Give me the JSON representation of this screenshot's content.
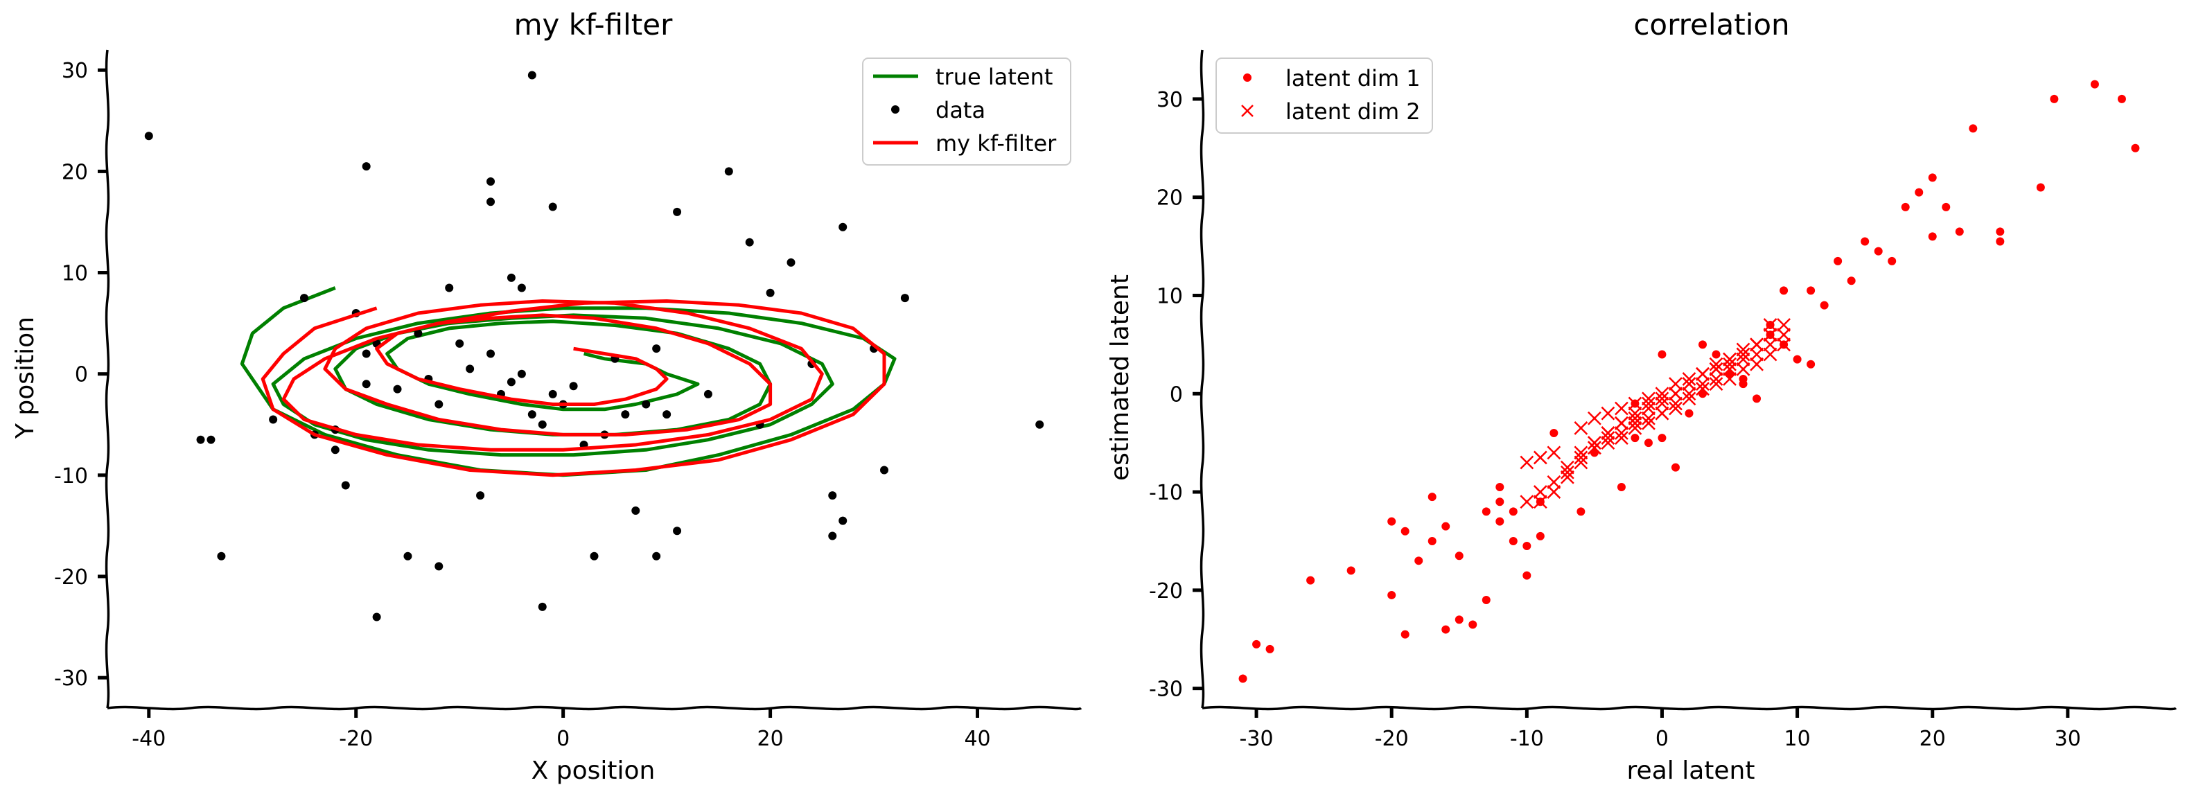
{
  "chart_data": [
    {
      "type": "line",
      "title": "my kf-filter",
      "xlabel": "X position",
      "ylabel": "Y position",
      "xlim": [
        -44,
        50
      ],
      "ylim": [
        -33,
        32
      ],
      "xticks": [
        -40,
        -20,
        0,
        20,
        40
      ],
      "xtick_labels": [
        "-40",
        "-20",
        "0",
        "20",
        "40"
      ],
      "yticks": [
        -30,
        -20,
        -10,
        0,
        10,
        20,
        30
      ],
      "ytick_labels": [
        "-30",
        "-20",
        "-10",
        "0",
        "10",
        "20",
        "30"
      ],
      "grid": false,
      "legend_position": "top-right",
      "series": [
        {
          "name": "true latent",
          "kind": "line",
          "color": "#008000",
          "x": [
            2,
            4,
            8,
            10,
            13,
            11,
            7,
            4,
            0,
            -4,
            -9,
            -13,
            -16,
            -17,
            -15,
            -11,
            -6,
            -1,
            5,
            11,
            16,
            19,
            20,
            19,
            16,
            11,
            5,
            -1,
            -7,
            -13,
            -18,
            -21,
            -22,
            -20,
            -16,
            -11,
            -5,
            1,
            8,
            15,
            21,
            25,
            26,
            24,
            20,
            14,
            8,
            1,
            -6,
            -13,
            -19,
            -24,
            -27,
            -28,
            -25,
            -20,
            -14,
            -7,
            0,
            8,
            16,
            23,
            29,
            32,
            31,
            28,
            22,
            15,
            8,
            0,
            -8,
            -16,
            -23,
            -28,
            -31,
            -30,
            -27,
            -22
          ],
          "y": [
            2,
            1.5,
            1,
            0,
            -1,
            -2,
            -3,
            -3.5,
            -3.5,
            -3,
            -2,
            -1,
            0.5,
            2,
            3.5,
            4.5,
            5,
            5.2,
            4.8,
            4,
            2.5,
            1,
            -1,
            -3,
            -4.5,
            -5.5,
            -6,
            -6,
            -5.5,
            -4.5,
            -3,
            -1.5,
            0.5,
            2.5,
            4,
            5,
            5.5,
            5.8,
            5.5,
            4.5,
            3,
            1,
            -1,
            -3,
            -5,
            -6.5,
            -7.5,
            -8,
            -8,
            -7.5,
            -6.5,
            -5,
            -3,
            -1,
            1.5,
            3.5,
            5,
            6,
            6.5,
            6.5,
            6,
            5,
            3.5,
            1.5,
            -1,
            -3.5,
            -6,
            -8,
            -9.5,
            -10,
            -9.5,
            -8,
            -6,
            -3.5,
            1,
            4,
            6.5,
            8.5
          ]
        },
        {
          "name": "data",
          "kind": "scatter",
          "color": "#000000",
          "x": [
            -40,
            -3,
            -19,
            -7,
            -7,
            -1,
            16,
            11,
            27,
            22,
            18,
            20,
            33,
            -4,
            -5,
            -11,
            -25,
            -20,
            -19,
            -12,
            -3,
            30,
            -28,
            -24,
            -22,
            -22,
            -35,
            -34,
            -33,
            -21,
            -18,
            -15,
            -12,
            -8,
            -2,
            3,
            7,
            9,
            11,
            26,
            26,
            27,
            31,
            46,
            -19,
            -18,
            -14,
            -10,
            -7,
            -6,
            -4,
            -2,
            0,
            2,
            4,
            6,
            8,
            10,
            14,
            19,
            24,
            -16,
            -13,
            -9,
            -5,
            1,
            5,
            9,
            -1
          ],
          "y": [
            23.5,
            29.5,
            20.5,
            19,
            17,
            16.5,
            20,
            16,
            14.5,
            11,
            13,
            8,
            7.5,
            8.5,
            9.5,
            8.5,
            7.5,
            6,
            -1,
            -3,
            -4,
            2.5,
            -4.5,
            -6,
            -5.5,
            -7.5,
            -6.5,
            -6.5,
            -18,
            -11,
            -24,
            -18,
            -19,
            -12,
            -23,
            -18,
            -13.5,
            -18,
            -15.5,
            -12,
            -16,
            -14.5,
            -9.5,
            -5,
            2,
            3,
            4,
            3,
            2,
            -2,
            0,
            -5,
            -3,
            -7,
            -6,
            -4,
            -3,
            -4,
            -2,
            -5,
            1,
            -1.5,
            -0.5,
            0.5,
            -0.8,
            -1.2,
            1.5,
            2.5,
            -2
          ]
        },
        {
          "name": "my kf-filter",
          "kind": "line",
          "color": "#ff0000",
          "x": [
            1,
            4,
            7,
            9,
            10,
            9,
            6,
            3,
            -1,
            -5,
            -10,
            -14,
            -17,
            -18,
            -16,
            -12,
            -7,
            -2,
            3,
            9,
            14,
            18,
            20,
            20,
            17,
            12,
            6,
            0,
            -6,
            -12,
            -17,
            -21,
            -23,
            -22,
            -19,
            -14,
            -8,
            -2,
            5,
            12,
            18,
            23,
            25,
            24,
            20,
            14,
            7,
            0,
            -7,
            -14,
            -20,
            -25,
            -27,
            -26,
            -23,
            -18,
            -12,
            -5,
            2,
            10,
            17,
            23,
            28,
            31,
            31,
            28,
            22,
            15,
            7,
            -1,
            -9,
            -17,
            -24,
            -28,
            -29,
            -27,
            -24,
            -18
          ],
          "y": [
            2.5,
            2,
            1.5,
            0.5,
            -0.5,
            -1.5,
            -2.5,
            -3,
            -3,
            -2.5,
            -1.5,
            -0.5,
            1,
            2.5,
            4,
            5,
            5.5,
            5.8,
            5.5,
            4.5,
            3,
            1,
            -1,
            -3,
            -4.5,
            -5.5,
            -6,
            -6,
            -5.5,
            -4.5,
            -3,
            -1.5,
            0.5,
            2.5,
            4.5,
            6,
            6.8,
            7.2,
            7,
            6,
            4.5,
            2.5,
            0,
            -2.5,
            -4.5,
            -6,
            -7,
            -7.5,
            -7.5,
            -7,
            -6,
            -4.5,
            -2.5,
            -0.5,
            1.5,
            3.5,
            5,
            6.2,
            7,
            7.2,
            6.8,
            6,
            4.5,
            2,
            -1,
            -4,
            -6.5,
            -8.5,
            -9.5,
            -10,
            -9.5,
            -8,
            -6,
            -3.5,
            -0.5,
            2,
            4.5,
            6.5
          ]
        }
      ]
    },
    {
      "type": "scatter",
      "title": "correlation",
      "xlabel": "real latent",
      "ylabel": "estimated latent",
      "xlim": [
        -34,
        38
      ],
      "ylim": [
        -32,
        35
      ],
      "xticks": [
        -30,
        -20,
        -10,
        0,
        10,
        20,
        30
      ],
      "xtick_labels": [
        "-30",
        "-20",
        "-10",
        "0",
        "10",
        "20",
        "30"
      ],
      "yticks": [
        -30,
        -20,
        -10,
        0,
        10,
        20,
        30
      ],
      "ytick_labels": [
        "-30",
        "-20",
        "-10",
        "0",
        "10",
        "20",
        "30"
      ],
      "grid": false,
      "legend_position": "top-left",
      "series": [
        {
          "name": "latent dim 1",
          "marker": "circle",
          "color": "#ff0000",
          "x": [
            -31,
            -30,
            -29,
            -26,
            -23,
            -20,
            -20,
            -19,
            -19,
            -17,
            -17,
            -16,
            -16,
            -15,
            -15,
            -14,
            -13,
            -13,
            -12,
            -12,
            -11,
            -10,
            -10,
            -9,
            -9,
            -8,
            -6,
            -5,
            -3,
            -2,
            -1,
            0,
            0,
            1,
            2,
            3,
            4,
            5,
            6,
            7,
            8,
            9,
            9,
            10,
            11,
            11,
            12,
            13,
            14,
            15,
            16,
            17,
            18,
            19,
            20,
            20,
            21,
            22,
            23,
            25,
            25,
            28,
            29,
            32,
            34,
            35,
            -12,
            -18,
            -11,
            -2,
            3,
            6,
            8
          ],
          "y": [
            -29,
            -25.5,
            -26,
            -19,
            -18,
            -20.5,
            -13,
            -14,
            -24.5,
            -10.5,
            -15,
            -13.5,
            -24,
            -23,
            -16.5,
            -23.5,
            -21,
            -12,
            -11,
            -9.5,
            -15,
            -18.5,
            -15.5,
            -14.5,
            -11,
            -4,
            -12,
            -6,
            -9.5,
            -4.5,
            -5,
            -4.5,
            4,
            -7.5,
            -2,
            5,
            4,
            2,
            1.5,
            -0.5,
            6,
            5,
            10.5,
            3.5,
            3,
            10.5,
            9,
            13.5,
            11.5,
            15.5,
            14.5,
            13.5,
            19,
            20.5,
            22,
            16,
            19,
            16.5,
            27,
            15.5,
            16.5,
            21,
            30,
            31.5,
            30,
            25,
            -13,
            -17,
            -12,
            -1,
            0,
            1,
            7
          ]
        },
        {
          "name": "latent dim 2",
          "marker": "x",
          "color": "#ff0000",
          "x": [
            -10,
            -9,
            -8,
            -9,
            -8,
            -7,
            -6,
            -5,
            -4,
            -3,
            -2,
            -1,
            0,
            1,
            2,
            3,
            4,
            5,
            6,
            7,
            8,
            9,
            -6,
            -5,
            -4,
            -3,
            -2,
            -1,
            0,
            1,
            2,
            3,
            4,
            5,
            6,
            7,
            8,
            -5,
            -4,
            -3,
            -2,
            -1,
            0,
            1,
            2,
            3,
            4,
            5,
            6,
            7,
            8,
            9,
            -7,
            -6,
            -5,
            -4,
            -3,
            -2,
            -1,
            0,
            1,
            2,
            3,
            4,
            5,
            6,
            7,
            8,
            -10,
            -9,
            -8,
            -7,
            -6,
            -5,
            -4,
            -3,
            -2,
            -1,
            0,
            1,
            2,
            3,
            4,
            5,
            6,
            7,
            8,
            9
          ],
          "y": [
            -7,
            -6.5,
            -6,
            -11,
            -10,
            -8.5,
            -7,
            -5.5,
            -5,
            -4.5,
            -3,
            -2.5,
            -2,
            -1,
            0,
            1,
            1.5,
            2.5,
            3.5,
            4,
            5,
            6,
            -3.5,
            -2.5,
            -2,
            -1.5,
            -1,
            -0.5,
            0,
            1,
            1.5,
            2,
            3,
            3.5,
            4.5,
            5,
            6,
            -5,
            -4.5,
            -4,
            -3.5,
            -3,
            -2,
            -1.5,
            -0.5,
            0.5,
            1,
            1.5,
            2.5,
            3,
            4,
            5,
            -7.5,
            -6,
            -5,
            -4,
            -3,
            -2.5,
            -1,
            -1,
            0,
            1,
            2,
            2.5,
            3.5,
            4,
            5,
            7,
            -11,
            -10,
            -9,
            -8,
            -6.5,
            -5.5,
            -4,
            -3,
            -2,
            -1.5,
            -0.5,
            0,
            1,
            2,
            2.5,
            3,
            4,
            5,
            6,
            7
          ]
        }
      ]
    }
  ]
}
